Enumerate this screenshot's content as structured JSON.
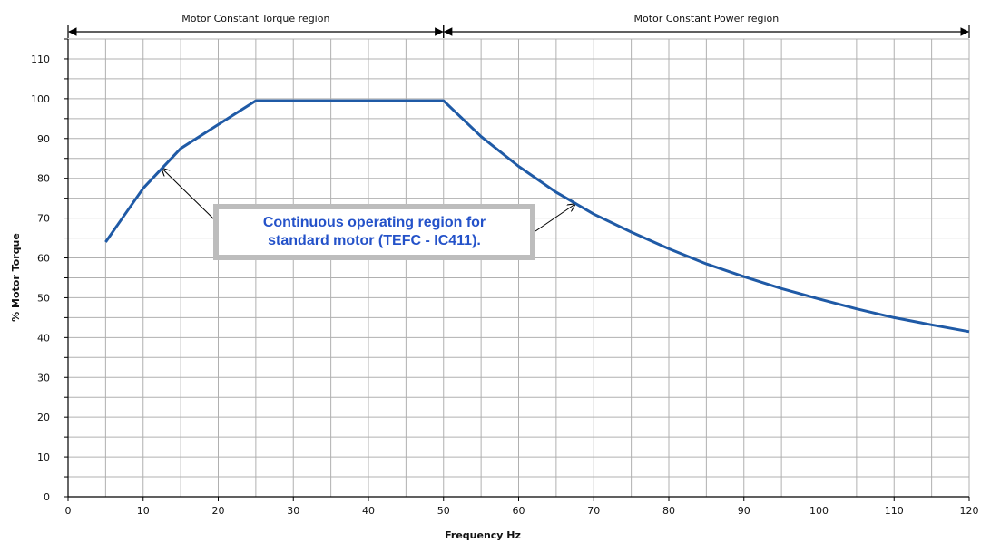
{
  "chart_data": {
    "type": "line",
    "xlabel": "Frequency Hz",
    "ylabel": "% Motor Torque",
    "xlim": [
      0,
      120
    ],
    "ylim": [
      0,
      115
    ],
    "xticks": [
      0,
      10,
      20,
      30,
      40,
      50,
      60,
      70,
      80,
      90,
      100,
      110,
      120
    ],
    "yticks": [
      0,
      10,
      20,
      30,
      40,
      50,
      60,
      70,
      80,
      90,
      100,
      110
    ],
    "grid": true,
    "regions": [
      {
        "label": "Motor Constant Torque region",
        "from": 0,
        "to": 50
      },
      {
        "label": "Motor Constant Power region",
        "from": 50,
        "to": 120
      }
    ],
    "annotation": {
      "lines": [
        "Continuous operating region for",
        "standard motor (TEFC - IC411)."
      ],
      "arrow_targets": [
        {
          "x": 12.5,
          "y": 82.5
        },
        {
          "x": 67.5,
          "y": 73.5
        }
      ]
    },
    "series": [
      {
        "color": "#1f5aa6",
        "x": [
          5,
          10,
          15,
          20,
          25,
          30,
          35,
          40,
          45,
          50,
          55,
          60,
          65,
          70,
          75,
          80,
          85,
          90,
          95,
          100,
          105,
          110,
          115,
          120
        ],
        "y": [
          64,
          77.5,
          87.5,
          93.5,
          99.5,
          99.5,
          99.5,
          99.5,
          99.5,
          99.5,
          90.5,
          83,
          76.5,
          71,
          66.5,
          62.3,
          58.5,
          55.3,
          52.3,
          49.7,
          47.2,
          45,
          43.2,
          41.5
        ]
      }
    ]
  }
}
